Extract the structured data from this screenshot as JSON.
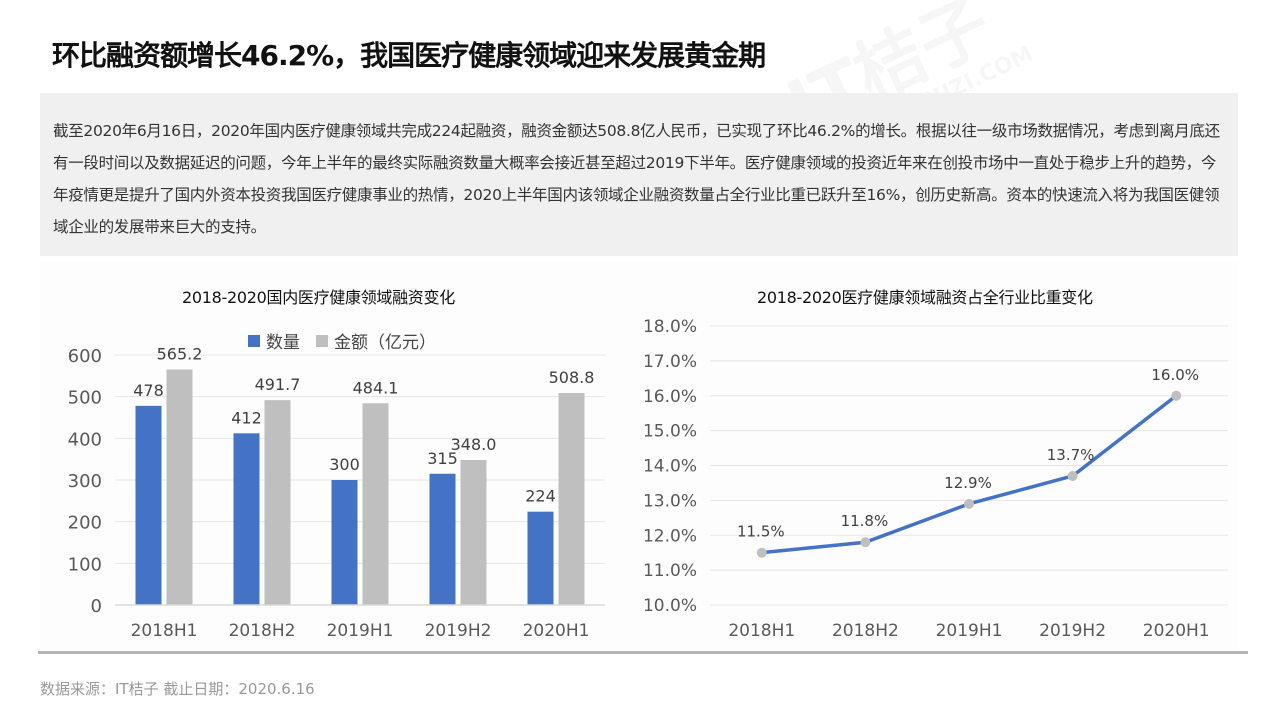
{
  "header": {
    "title": "环比融资额增长46.2%，我国医疗健康领域迎来发展黄金期"
  },
  "summary": {
    "text": "截至2020年6月16日，2020年国内医疗健康领域共完成224起融资，融资金额达508.8亿人民币，已实现了环比46.2%的增长。根据以往一级市场数据情况，考虑到离月底还有一段时间以及数据延迟的问题，今年上半年的最终实际融资数量大概率会接近甚至超过2019下半年。医疗健康领域的投资近年来在创投市场中一直处于稳步上升的趋势，今年疫情更是提升了国内外资本投资我国医疗健康事业的热情，2020上半年国内该领域企业融资数量占全行业比重已跃升至16%，创历史新高。资本的快速流入将为我国医健领域企业的发展带来巨大的支持。"
  },
  "footer": {
    "source": "数据来源：IT桔子  截止日期：2020.6.16"
  },
  "watermark": {
    "brand": "IT桔子",
    "url": "ITJUZI.COM"
  },
  "colors": {
    "blue": "#4472c4",
    "gray": "#bfbfbf",
    "marker": "#bfbfbf",
    "grid": "#e6e6e6",
    "axis_text": "#595959"
  },
  "chart_data": [
    {
      "type": "bar",
      "title": "2018-2020国内医疗健康领域融资变化",
      "categories": [
        "2018H1",
        "2018H2",
        "2019H1",
        "2019H2",
        "2020H1"
      ],
      "series": [
        {
          "name": "数量",
          "values": [
            478,
            412,
            300,
            315,
            224
          ],
          "color": "#4472c4",
          "labels": [
            "478",
            "412",
            "300",
            "315",
            "224"
          ]
        },
        {
          "name": "金额（亿元）",
          "values": [
            565.2,
            491.7,
            484.1,
            348.0,
            508.8
          ],
          "color": "#bfbfbf",
          "labels": [
            "565.2",
            "491.7",
            "484.1",
            "348.0",
            "508.8"
          ]
        }
      ],
      "xlabel": "",
      "ylabel": "",
      "ylim": [
        0,
        600
      ],
      "yticks": [
        "0",
        "100",
        "200",
        "300",
        "400",
        "500",
        "600"
      ],
      "grid": true,
      "legend_position": "top"
    },
    {
      "type": "line",
      "title": "2018-2020医疗健康领域融资占全行业比重变化",
      "categories": [
        "2018H1",
        "2018H2",
        "2019H1",
        "2019H2",
        "2020H1"
      ],
      "series": [
        {
          "name": "占全行业比重",
          "values": [
            11.5,
            11.8,
            12.9,
            13.7,
            16.0
          ],
          "color": "#4472c4",
          "labels": [
            "11.5%",
            "11.8%",
            "12.9%",
            "13.7%",
            "16.0%"
          ]
        }
      ],
      "xlabel": "",
      "ylabel": "",
      "ylim": [
        10.0,
        18.0
      ],
      "yticks": [
        "10.0%",
        "11.0%",
        "12.0%",
        "13.0%",
        "14.0%",
        "15.0%",
        "16.0%",
        "17.0%",
        "18.0%"
      ],
      "grid": true,
      "legend_position": "none"
    }
  ]
}
